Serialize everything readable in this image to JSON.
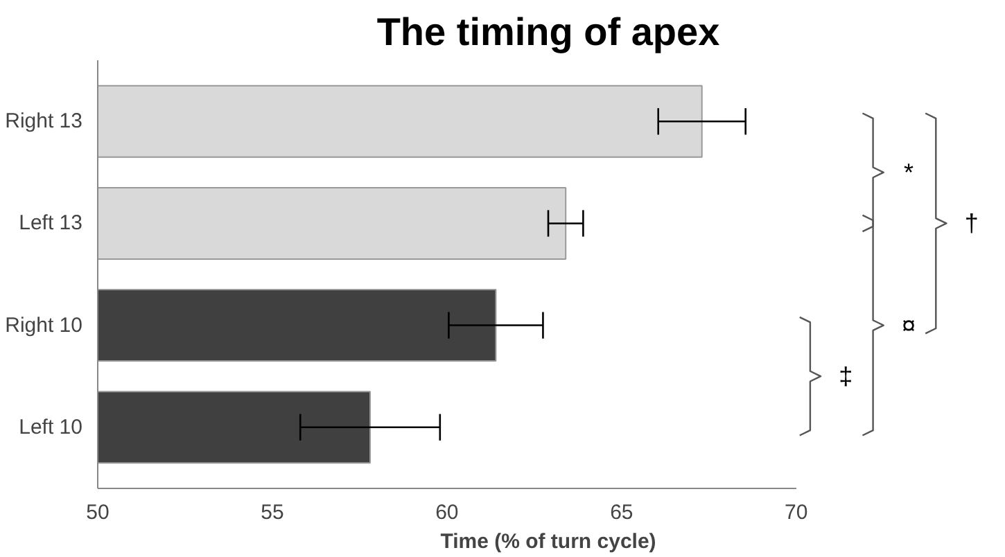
{
  "chart_data": {
    "type": "bar",
    "orientation": "horizontal",
    "title": "The timing of apex",
    "xlabel": "Time (% of turn cycle)",
    "categories": [
      "Right 13",
      "Left 13",
      "Right 10",
      "Left 10"
    ],
    "values": [
      67.3,
      63.4,
      61.4,
      57.8
    ],
    "colors": [
      "#d9d9d9",
      "#d9d9d9",
      "#404040",
      "#404040"
    ],
    "errors": [
      1.25,
      0.5,
      1.35,
      2.0
    ],
    "xlim": [
      50,
      70
    ],
    "xticks": [
      50,
      55,
      60,
      65,
      70
    ],
    "grid": false,
    "annotations": [
      "*",
      "¤",
      "‡",
      "†"
    ]
  }
}
